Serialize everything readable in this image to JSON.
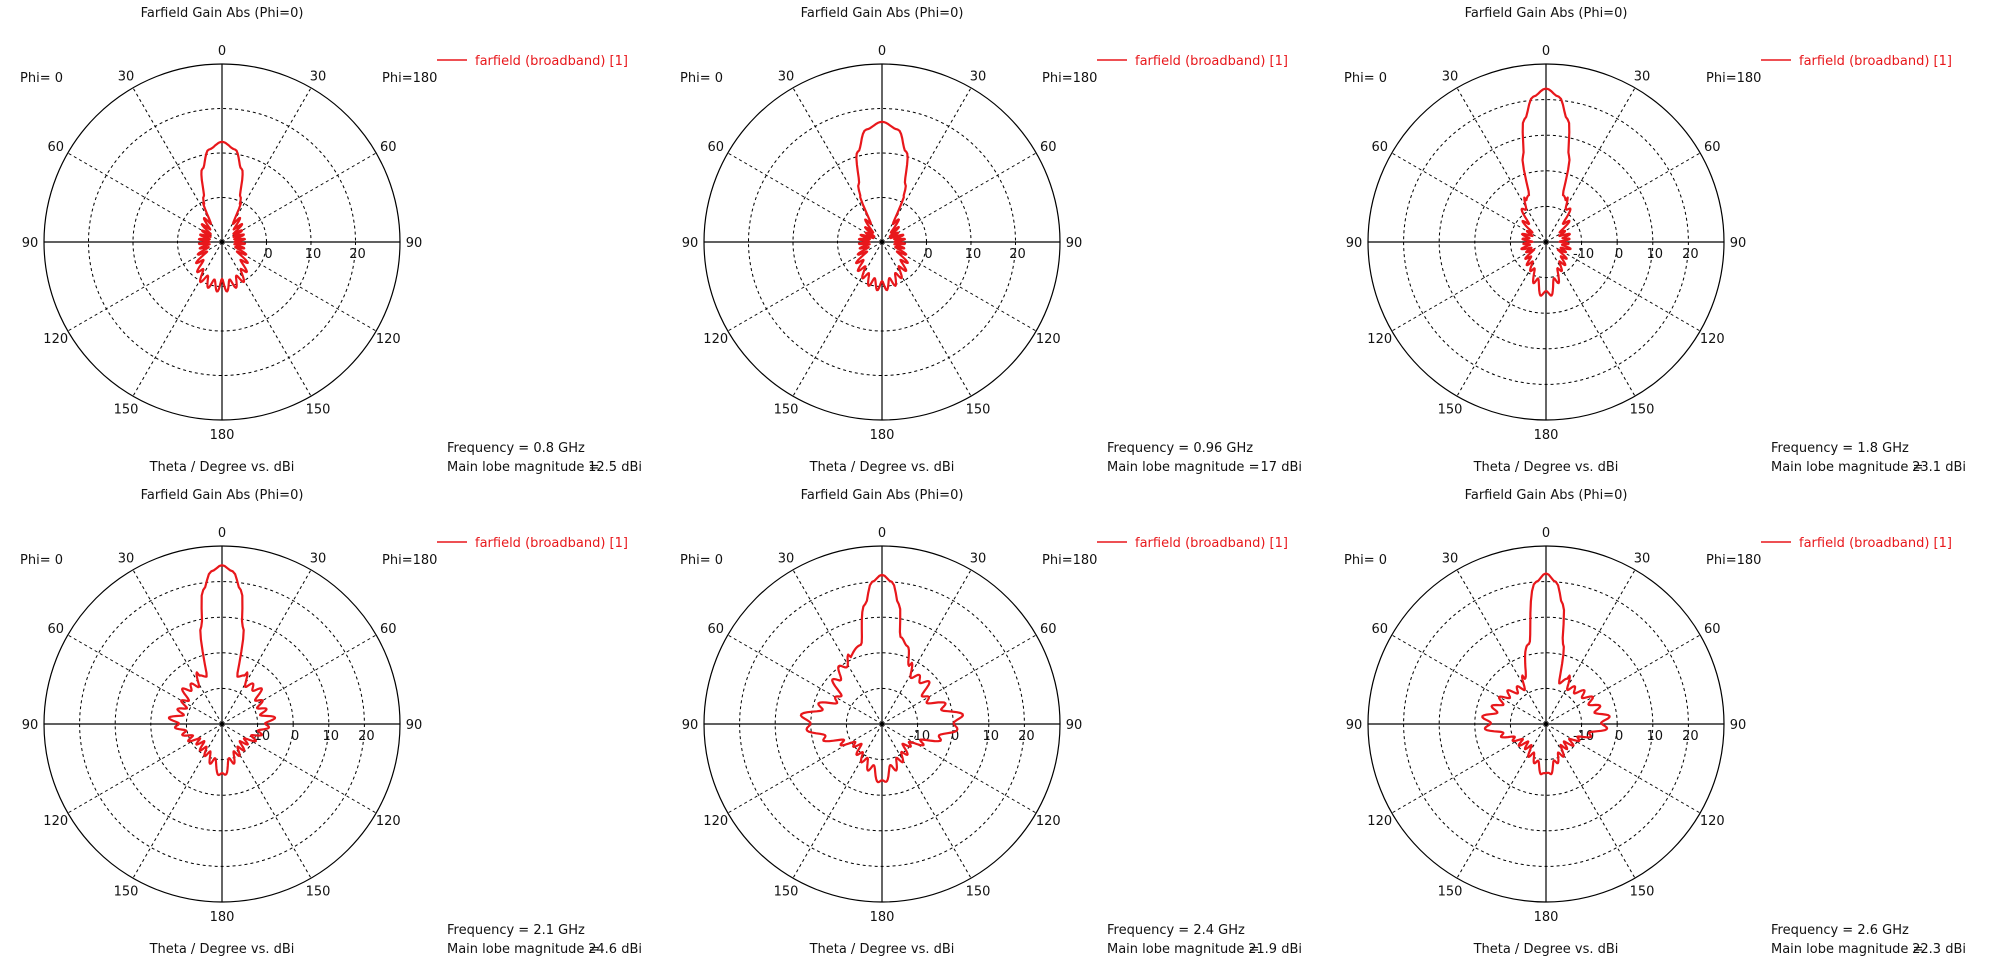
{
  "colors": {
    "trace": "#e8171b",
    "axes": "#000000",
    "text": "#111111"
  },
  "chart_data": [
    {
      "type": "polar",
      "title": "Farfield Gain Abs (Phi=0)",
      "xlabel": "Theta / Degree vs. dBi",
      "left_label": "Phi=  0",
      "right_label": "Phi=180",
      "theta_ticks": [
        "0",
        "30",
        "60",
        "90",
        "120",
        "150",
        "180",
        "150",
        "120",
        "90",
        "60",
        "30"
      ],
      "radial_ticks": [
        "0",
        "10",
        "20"
      ],
      "r_min": -10,
      "r_max": 30,
      "legend": "farfield (broadband) [1]",
      "frequency_label": "Frequency = 0.8 GHz",
      "main_lobe_label": "Main lobe magnitude =",
      "main_lobe_value": "12.5 dBi",
      "main_lobe_dbi": 12.5,
      "pattern": {
        "theta": [
          0,
          8,
          15,
          22,
          30,
          45,
          60,
          75,
          90,
          105,
          120,
          135,
          150,
          160,
          170,
          175,
          180,
          185,
          190,
          200,
          210,
          225,
          240,
          255,
          270,
          285,
          300,
          315,
          330,
          338,
          345,
          352
        ],
        "gain": [
          12.5,
          11,
          7,
          1,
          -4,
          -5,
          -6,
          -6,
          -6,
          -6,
          -5,
          -3,
          -1,
          -0.5,
          -0.2,
          0,
          -0.5,
          0,
          -0.2,
          -0.5,
          -1,
          -3,
          -5,
          -6,
          -6,
          -6,
          -6,
          -5,
          -4,
          1,
          7,
          11
        ]
      }
    },
    {
      "type": "polar",
      "title": "Farfield Gain Abs (Phi=0)",
      "xlabel": "Theta / Degree vs. dBi",
      "left_label": "Phi=  0",
      "right_label": "Phi=180",
      "theta_ticks": [
        "0",
        "30",
        "60",
        "90",
        "120",
        "150",
        "180",
        "150",
        "120",
        "90",
        "60",
        "30"
      ],
      "radial_ticks": [
        "0",
        "10",
        "20"
      ],
      "r_min": -10,
      "r_max": 30,
      "legend": "farfield (broadband) [1]",
      "frequency_label": "Frequency = 0.96 GHz",
      "main_lobe_label": "Main lobe magnitude =",
      "main_lobe_value": "17 dBi",
      "main_lobe_dbi": 17,
      "pattern": {
        "theta": [
          0,
          8,
          15,
          22,
          30,
          45,
          60,
          75,
          90,
          105,
          120,
          135,
          150,
          160,
          170,
          175,
          180,
          185,
          190,
          200,
          210,
          225,
          240,
          255,
          270,
          285,
          300,
          315,
          330,
          338,
          345,
          352
        ],
        "gain": [
          17,
          15.5,
          11,
          4,
          -4,
          -6,
          -7,
          -6,
          -6,
          -6,
          -5,
          -3,
          -2,
          -1,
          -0.5,
          -0.3,
          0,
          -0.3,
          -0.5,
          -1,
          -2,
          -3,
          -5,
          -6,
          -6,
          -6,
          -7,
          -6,
          -4,
          4,
          11,
          15.5
        ]
      }
    },
    {
      "type": "polar",
      "title": "Farfield Gain Abs (Phi=0)",
      "xlabel": "Theta / Degree vs. dBi",
      "left_label": "Phi=  0",
      "right_label": "Phi=180",
      "theta_ticks": [
        "0",
        "30",
        "60",
        "90",
        "120",
        "150",
        "180",
        "150",
        "120",
        "90",
        "60",
        "30"
      ],
      "radial_ticks": [
        "-10",
        "0",
        "10",
        "20"
      ],
      "r_min": -20,
      "r_max": 30,
      "legend": "farfield (broadband) [1]",
      "frequency_label": "Frequency = 1.8 GHz",
      "main_lobe_label": "Main lobe magnitude =",
      "main_lobe_value": "23.1 dBi",
      "main_lobe_dbi": 23.1,
      "pattern": {
        "theta": [
          0,
          5,
          10,
          15,
          20,
          30,
          45,
          60,
          75,
          90,
          105,
          120,
          135,
          150,
          165,
          175,
          180,
          185,
          195,
          210,
          225,
          240,
          255,
          270,
          285,
          300,
          315,
          330,
          340,
          345,
          350,
          355
        ],
        "gain": [
          23.1,
          21,
          15,
          5,
          -6,
          -8,
          -12,
          -15,
          -14,
          -15,
          -14,
          -15,
          -13,
          -12,
          -9,
          -6,
          -5,
          -6,
          -9,
          -12,
          -13,
          -15,
          -14,
          -15,
          -14,
          -15,
          -12,
          -8,
          -6,
          5,
          15,
          21
        ]
      }
    },
    {
      "type": "polar",
      "title": "Farfield Gain Abs (Phi=0)",
      "xlabel": "Theta / Degree vs. dBi",
      "left_label": "Phi=  0",
      "right_label": "Phi=180",
      "theta_ticks": [
        "0",
        "30",
        "60",
        "90",
        "120",
        "150",
        "180",
        "150",
        "120",
        "90",
        "60",
        "30"
      ],
      "radial_ticks": [
        "-10",
        "0",
        "10",
        "20"
      ],
      "r_min": -20,
      "r_max": 30,
      "legend": "farfield (broadband) [1]",
      "frequency_label": "Frequency = 2.1 GHz",
      "main_lobe_label": "Main lobe magnitude =",
      "main_lobe_value": "24.6 dBi",
      "main_lobe_dbi": 24.6,
      "pattern": {
        "theta": [
          0,
          4,
          8,
          12,
          18,
          25,
          35,
          45,
          60,
          75,
          85,
          95,
          110,
          130,
          150,
          170,
          180,
          190,
          210,
          230,
          250,
          265,
          275,
          285,
          300,
          315,
          325,
          335,
          342,
          348,
          352,
          356
        ],
        "gain": [
          24.6,
          23,
          18,
          8,
          -6,
          -5,
          -7,
          -6,
          -8,
          -8,
          -6,
          -8,
          -10,
          -12,
          -11,
          -9,
          -5,
          -9,
          -11,
          -12,
          -10,
          -8,
          -6,
          -8,
          -8,
          -6,
          -7,
          -5,
          -6,
          8,
          18,
          23
        ]
      }
    },
    {
      "type": "polar",
      "title": "Farfield Gain Abs (Phi=0)",
      "xlabel": "Theta / Degree vs. dBi",
      "left_label": "Phi=  0",
      "right_label": "Phi=180",
      "theta_ticks": [
        "0",
        "30",
        "60",
        "90",
        "120",
        "150",
        "180",
        "150",
        "120",
        "90",
        "60",
        "30"
      ],
      "radial_ticks": [
        "-10",
        "0",
        "10",
        "20"
      ],
      "r_min": -20,
      "r_max": 30,
      "legend": "farfield (broadband) [1]",
      "frequency_label": "Frequency = 2.4 GHz",
      "main_lobe_label": "Main lobe magnitude =",
      "main_lobe_value": "21.9 dBi",
      "main_lobe_dbi": 21.9,
      "pattern": {
        "theta": [
          0,
          4,
          8,
          12,
          18,
          25,
          35,
          45,
          60,
          75,
          85,
          95,
          105,
          115,
          130,
          150,
          170,
          180,
          190,
          210,
          230,
          245,
          255,
          265,
          275,
          285,
          300,
          315,
          330,
          345,
          352,
          356
        ],
        "gain": [
          21.9,
          20,
          14,
          5,
          3,
          -2,
          -4,
          -3,
          -6,
          -2,
          2,
          0,
          -4,
          -8,
          -11,
          -9,
          -7,
          -3,
          -7,
          -9,
          -11,
          -8,
          -4,
          0,
          2,
          -2,
          -6,
          -2,
          0,
          3,
          14,
          20
        ]
      }
    },
    {
      "type": "polar",
      "title": "Farfield Gain Abs (Phi=0)",
      "xlabel": "Theta / Degree vs. dBi",
      "left_label": "Phi=  0",
      "right_label": "Phi=180",
      "theta_ticks": [
        "0",
        "30",
        "60",
        "90",
        "120",
        "150",
        "180",
        "150",
        "120",
        "90",
        "60",
        "30"
      ],
      "radial_ticks": [
        "-10",
        "0",
        "10",
        "20"
      ],
      "r_min": -20,
      "r_max": 30,
      "legend": "farfield (broadband) [1]",
      "frequency_label": "Frequency = 2.6 GHz",
      "main_lobe_label": "Main lobe magnitude =",
      "main_lobe_value": "22.3 dBi",
      "main_lobe_dbi": 22.3,
      "pattern": {
        "theta": [
          0,
          4,
          8,
          12,
          18,
          25,
          35,
          45,
          60,
          75,
          85,
          95,
          105,
          120,
          140,
          160,
          175,
          180,
          185,
          200,
          220,
          240,
          255,
          265,
          275,
          285,
          300,
          315,
          325,
          335,
          348,
          356
        ],
        "gain": [
          22.3,
          20,
          14,
          3,
          -8,
          -6,
          -8,
          -7,
          -6,
          -5,
          -3,
          -4,
          -8,
          -11,
          -12,
          -10,
          -7,
          -5,
          -7,
          -10,
          -12,
          -11,
          -8,
          -4,
          -3,
          -5,
          -6,
          -7,
          -8,
          -6,
          3,
          20
        ]
      }
    }
  ]
}
